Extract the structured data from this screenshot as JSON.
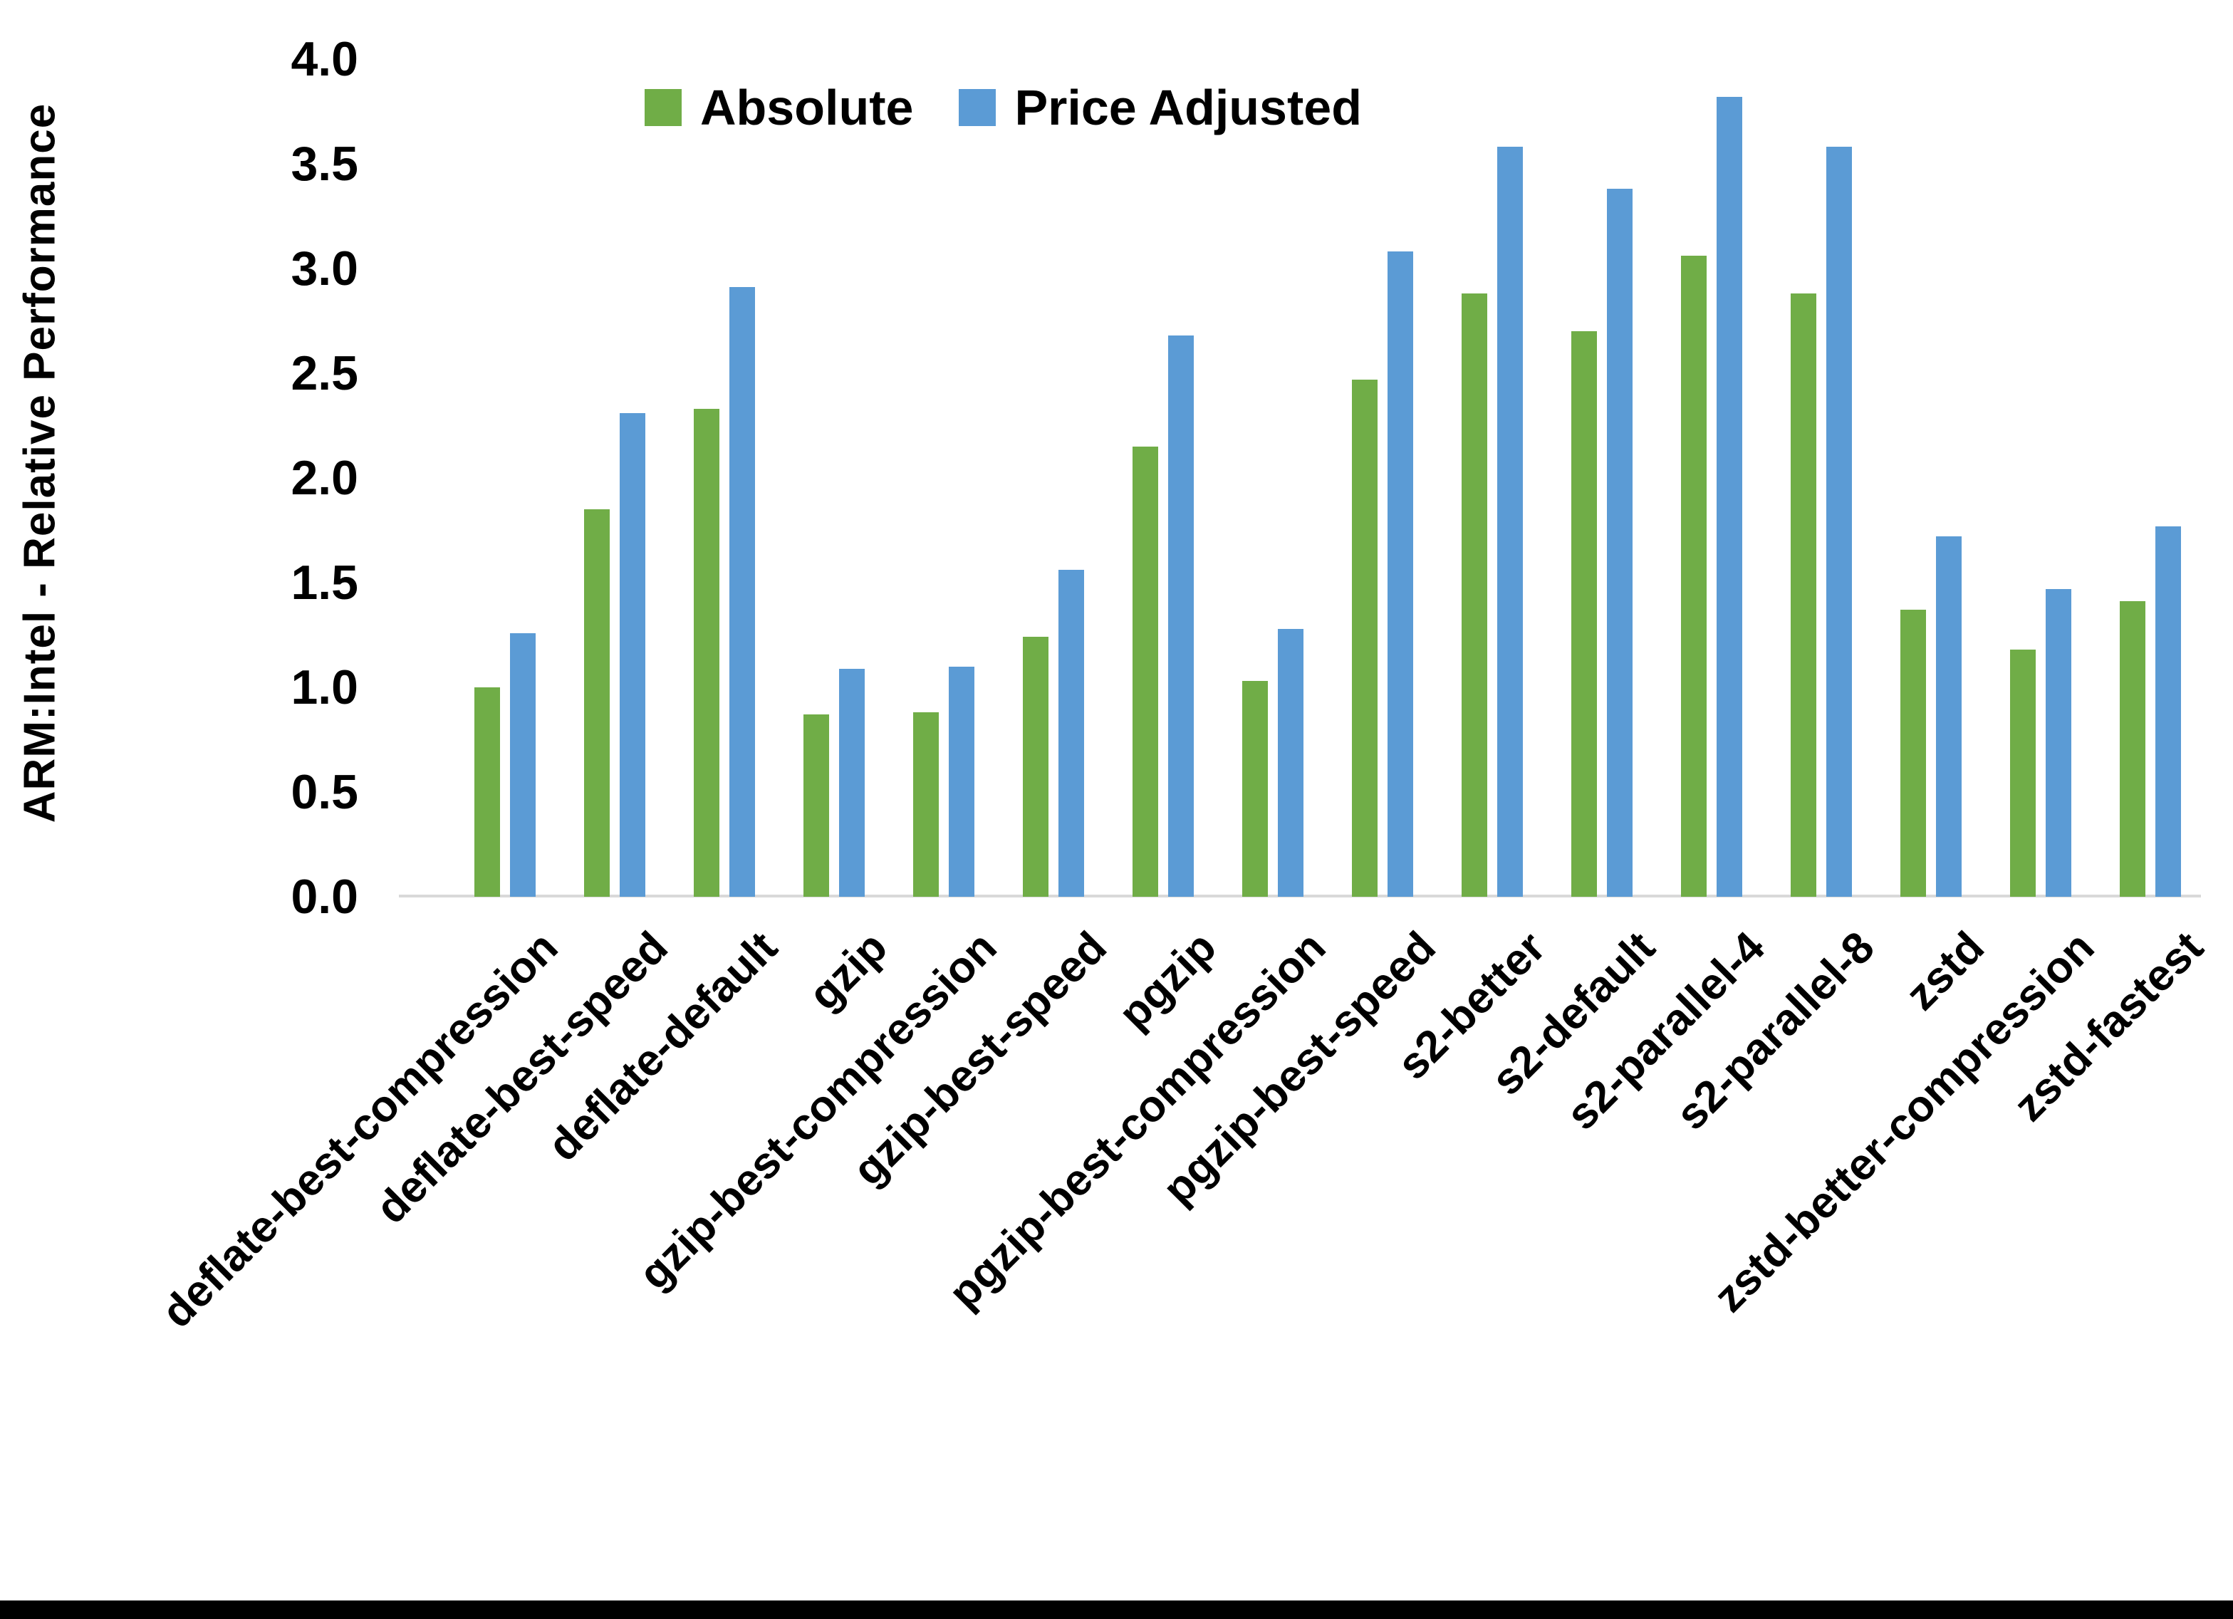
{
  "chart_data": {
    "type": "bar",
    "title": "",
    "xlabel": "",
    "ylabel": "ARM:Intel - Relative Performance",
    "ylim": [
      0.0,
      4.0
    ],
    "ytick_step": 0.5,
    "ytick_labels": [
      "4.0",
      "3.5",
      "3.0",
      "2.5",
      "2.0",
      "1.5",
      "1.0",
      "0.5",
      "0.0"
    ],
    "grid": false,
    "legend_position": "top-center",
    "axis_line_color": "#D9D9D9",
    "categories": [
      "deflate-best-compression",
      "deflate-best-speed",
      "deflate-default",
      "gzip",
      "gzip-best-compression",
      "gzip-best-speed",
      "pgzip",
      "pgzip-best-compression",
      "pgzip-best-speed",
      "s2-better",
      "s2-default",
      "s2-parallel-4",
      "s2-parallel-8",
      "zstd",
      "zstd-better-compression",
      "zstd-fastest"
    ],
    "series": [
      {
        "name": "Absolute",
        "color": "#70AD47",
        "values": [
          1.0,
          1.85,
          2.33,
          0.87,
          0.88,
          1.24,
          2.15,
          1.03,
          2.47,
          2.88,
          2.7,
          3.06,
          2.88,
          1.37,
          1.18,
          1.41
        ]
      },
      {
        "name": "Price Adjusted",
        "color": "#5B9BD5",
        "values": [
          1.26,
          2.31,
          2.91,
          1.09,
          1.1,
          1.56,
          2.68,
          1.28,
          3.08,
          3.58,
          3.38,
          3.82,
          3.58,
          1.72,
          1.47,
          1.77
        ]
      }
    ]
  }
}
